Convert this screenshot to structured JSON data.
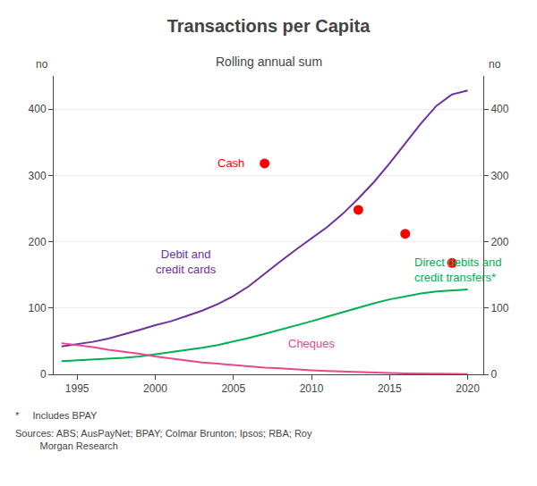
{
  "chart_data": {
    "type": "line",
    "title": "Transactions per Capita",
    "subtitle": "Rolling annual sum",
    "ylabel": "no",
    "y2label": "no",
    "footnotes": [
      "*     Includes BPAY",
      "Sources: ABS; AusPayNet; BPAY; Colmar Brunton; Ipsos; RBA; Roy\n         Morgan Research"
    ],
    "xlim": [
      1993.5,
      2021
    ],
    "xticks": [
      1995,
      2000,
      2005,
      2010,
      2015,
      2020
    ],
    "ylim": [
      0,
      450
    ],
    "yticks": [
      0,
      100,
      200,
      300,
      400
    ],
    "y2lim": [
      0,
      450
    ],
    "y2ticks": [
      0,
      100,
      200,
      300,
      400
    ],
    "grid": "y",
    "series": [
      {
        "name": "Debit and\ncredit cards",
        "type": "line",
        "color": "#7030a0",
        "x": [
          1994,
          1995,
          1996,
          1997,
          1998,
          1999,
          2000,
          2001,
          2002,
          2003,
          2004,
          2005,
          2006,
          2007,
          2008,
          2009,
          2010,
          2011,
          2012,
          2013,
          2014,
          2015,
          2016,
          2017,
          2018,
          2019,
          2020
        ],
        "values": [
          42,
          45,
          49,
          54,
          60,
          67,
          74,
          80,
          88,
          96,
          106,
          118,
          133,
          152,
          170,
          188,
          205,
          222,
          242,
          265,
          290,
          318,
          348,
          378,
          405,
          422,
          428
        ]
      },
      {
        "name": "Direct debits and\ncredit transfers*",
        "type": "line",
        "color": "#00b050",
        "x": [
          1994,
          1995,
          1996,
          1997,
          1998,
          1999,
          2000,
          2001,
          2002,
          2003,
          2004,
          2005,
          2006,
          2007,
          2008,
          2009,
          2010,
          2011,
          2012,
          2013,
          2014,
          2015,
          2016,
          2017,
          2018,
          2019,
          2020
        ],
        "values": [
          20,
          21,
          22,
          23,
          25,
          27,
          30,
          33,
          36,
          40,
          44,
          49,
          55,
          61,
          67,
          73,
          80,
          87,
          94,
          100,
          107,
          113,
          118,
          122,
          125,
          127,
          128
        ]
      },
      {
        "name": "Cheques",
        "type": "line",
        "color": "#e8488a",
        "x": [
          1994,
          1995,
          1996,
          1997,
          1998,
          1999,
          2000,
          2001,
          2002,
          2003,
          2004,
          2005,
          2006,
          2007,
          2008,
          2009,
          2010,
          2011,
          2012,
          2013,
          2014,
          2015,
          2016,
          2017,
          2018,
          2019,
          2020
        ],
        "values": [
          47,
          44,
          41,
          37,
          34,
          31,
          27,
          24,
          21,
          18,
          16,
          14,
          12,
          10,
          9,
          7,
          6,
          5,
          4,
          3,
          2.5,
          2,
          1.5,
          1,
          0.8,
          0.6,
          0.5
        ]
      },
      {
        "name": "Cash",
        "type": "scatter",
        "marker": "circle",
        "color": "#ff0000",
        "x": [
          2007,
          2013,
          2016,
          2019
        ],
        "values": [
          318,
          248,
          212,
          168
        ]
      }
    ],
    "annotations": [
      {
        "text": "Cash",
        "x": 2005.8,
        "y": 318,
        "color": "#ff0000",
        "align": "right"
      },
      {
        "text": "Debit and\ncredit cards",
        "x": 2002,
        "y": 170,
        "color": "#7030a0",
        "align": "center"
      },
      {
        "text": "Direct debits and\ncredit transfers*",
        "x": 2016.5,
        "y": 158,
        "color": "#00b050",
        "align": "left"
      },
      {
        "text": "Cheques",
        "x": 2010,
        "y": 46,
        "color": "#e8488a",
        "align": "center"
      }
    ]
  }
}
